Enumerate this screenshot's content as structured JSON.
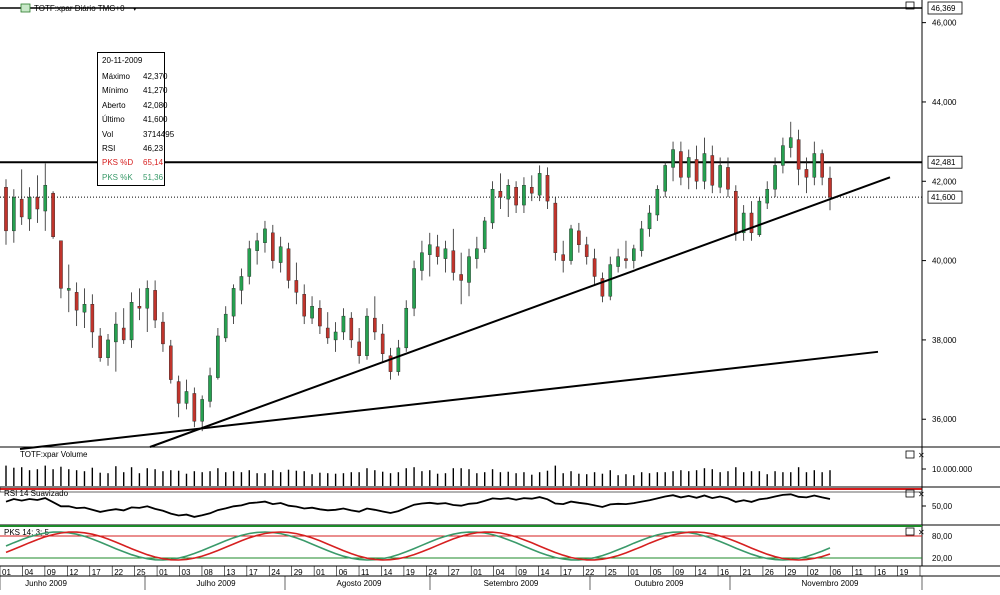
{
  "main_panel": {
    "title": "TOTF:xpar Diário TMG+0",
    "menu_arrow": "▾",
    "window_button": "maximize-icon"
  },
  "tooltip": {
    "date": "20-11-2009",
    "rows": [
      {
        "label": "Máximo",
        "value": "42,370"
      },
      {
        "label": "Mínimo",
        "value": "41,270"
      },
      {
        "label": "Aberto",
        "value": "42,080"
      },
      {
        "label": "Último",
        "value": "41,600"
      },
      {
        "label": "Vol",
        "value": "3714495"
      },
      {
        "label": "RSI",
        "value": "46,23"
      },
      {
        "label": "PKS %D",
        "value": "65,14"
      },
      {
        "label": "PKS %K",
        "value": "51,36"
      }
    ]
  },
  "volume_panel": {
    "title": "TOTF:xpar Volume",
    "label": "10.000.000"
  },
  "rsi_panel": {
    "title": "RSI 14 Suavizado",
    "label": "50,00"
  },
  "pks_panel": {
    "title": "PKS 14; 3; 5",
    "labels": [
      "80,00",
      "20,00"
    ]
  },
  "colors": {
    "up": "#26a050",
    "down": "#c0342c",
    "pks_d": "#d62020",
    "pks_k": "#3a9a6a",
    "ref_red": "#d61c1c",
    "ref_green": "#1d8a2a"
  },
  "chart_data": {
    "type": "candlestick",
    "ylim": [
      35300,
      46369
    ],
    "y_ticks": [
      "36,000",
      "38,000",
      "40,000",
      "42,000",
      "44,000",
      "46,000"
    ],
    "y_top_label": "46,369",
    "price_labels": [
      "42,481",
      "41,600"
    ],
    "horizontal_line": 42481,
    "last_price": 41600,
    "x_days": [
      "01",
      "04",
      "09",
      "12",
      "17",
      "22",
      "25",
      "01",
      "03",
      "08",
      "13",
      "17",
      "24",
      "29",
      "01",
      "06",
      "11",
      "14",
      "19",
      "24",
      "27",
      "01",
      "04",
      "09",
      "14",
      "17",
      "22",
      "25",
      "01",
      "05",
      "09",
      "14",
      "16",
      "21",
      "26",
      "29",
      "02",
      "06",
      "11",
      "16",
      "19"
    ],
    "x_months": [
      "Junho 2009",
      "Julho 2009",
      "Agosto 2009",
      "Setembro 2009",
      "Outubro 2009",
      "Novembro 2009"
    ],
    "candles": [
      {
        "o": 41850,
        "h": 42050,
        "l": 40400,
        "c": 40750
      },
      {
        "o": 40750,
        "h": 41800,
        "l": 40450,
        "c": 41600
      },
      {
        "o": 41550,
        "h": 42300,
        "l": 40900,
        "c": 41100
      },
      {
        "o": 41050,
        "h": 41850,
        "l": 40750,
        "c": 41600
      },
      {
        "o": 41600,
        "h": 42150,
        "l": 40950,
        "c": 41300
      },
      {
        "o": 41250,
        "h": 42450,
        "l": 40750,
        "c": 41900
      },
      {
        "o": 41700,
        "h": 41750,
        "l": 40550,
        "c": 40600
      },
      {
        "o": 40500,
        "h": 40500,
        "l": 39050,
        "c": 39300
      },
      {
        "o": 39250,
        "h": 39900,
        "l": 38700,
        "c": 39300
      },
      {
        "o": 39200,
        "h": 39450,
        "l": 38350,
        "c": 38750
      },
      {
        "o": 38700,
        "h": 39300,
        "l": 38300,
        "c": 38900
      },
      {
        "o": 38900,
        "h": 39150,
        "l": 37800,
        "c": 38200
      },
      {
        "o": 38100,
        "h": 38300,
        "l": 37450,
        "c": 37550
      },
      {
        "o": 37550,
        "h": 38150,
        "l": 37350,
        "c": 38000
      },
      {
        "o": 37950,
        "h": 38700,
        "l": 37200,
        "c": 38400
      },
      {
        "o": 38300,
        "h": 38800,
        "l": 37900,
        "c": 38000
      },
      {
        "o": 38000,
        "h": 39200,
        "l": 37800,
        "c": 38950
      },
      {
        "o": 38850,
        "h": 39300,
        "l": 38500,
        "c": 38800
      },
      {
        "o": 38800,
        "h": 39500,
        "l": 38200,
        "c": 39300
      },
      {
        "o": 39250,
        "h": 39500,
        "l": 38300,
        "c": 38500
      },
      {
        "o": 38450,
        "h": 38700,
        "l": 37700,
        "c": 37900
      },
      {
        "o": 37850,
        "h": 38000,
        "l": 36900,
        "c": 37000
      },
      {
        "o": 36950,
        "h": 37100,
        "l": 36050,
        "c": 36400
      },
      {
        "o": 36400,
        "h": 37000,
        "l": 36250,
        "c": 36700
      },
      {
        "o": 36650,
        "h": 36800,
        "l": 35800,
        "c": 35950
      },
      {
        "o": 35950,
        "h": 36600,
        "l": 35700,
        "c": 36500
      },
      {
        "o": 36450,
        "h": 37300,
        "l": 36300,
        "c": 37100
      },
      {
        "o": 37050,
        "h": 38300,
        "l": 37000,
        "c": 38100
      },
      {
        "o": 38050,
        "h": 38850,
        "l": 37950,
        "c": 38650
      },
      {
        "o": 38600,
        "h": 39400,
        "l": 38400,
        "c": 39300
      },
      {
        "o": 39250,
        "h": 39800,
        "l": 38900,
        "c": 39600
      },
      {
        "o": 39600,
        "h": 40500,
        "l": 39400,
        "c": 40300
      },
      {
        "o": 40250,
        "h": 40700,
        "l": 39900,
        "c": 40500
      },
      {
        "o": 40450,
        "h": 41000,
        "l": 40200,
        "c": 40800
      },
      {
        "o": 40700,
        "h": 40900,
        "l": 39800,
        "c": 40000
      },
      {
        "o": 39950,
        "h": 40600,
        "l": 39700,
        "c": 40350
      },
      {
        "o": 40300,
        "h": 40450,
        "l": 39300,
        "c": 39500
      },
      {
        "o": 39500,
        "h": 39950,
        "l": 38900,
        "c": 39200
      },
      {
        "o": 39150,
        "h": 39400,
        "l": 38400,
        "c": 38600
      },
      {
        "o": 38550,
        "h": 39100,
        "l": 38400,
        "c": 38850
      },
      {
        "o": 38800,
        "h": 39000,
        "l": 38150,
        "c": 38350
      },
      {
        "o": 38300,
        "h": 38700,
        "l": 37900,
        "c": 38050
      },
      {
        "o": 38000,
        "h": 38450,
        "l": 37700,
        "c": 38200
      },
      {
        "o": 38200,
        "h": 38800,
        "l": 38000,
        "c": 38600
      },
      {
        "o": 38550,
        "h": 38700,
        "l": 37800,
        "c": 38000
      },
      {
        "o": 37950,
        "h": 38300,
        "l": 37400,
        "c": 37600
      },
      {
        "o": 37600,
        "h": 38800,
        "l": 37500,
        "c": 38600
      },
      {
        "o": 38550,
        "h": 39100,
        "l": 38000,
        "c": 38200
      },
      {
        "o": 38150,
        "h": 38400,
        "l": 37450,
        "c": 37650
      },
      {
        "o": 37600,
        "h": 37800,
        "l": 37000,
        "c": 37200
      },
      {
        "o": 37200,
        "h": 38000,
        "l": 37100,
        "c": 37800
      },
      {
        "o": 37800,
        "h": 39000,
        "l": 37700,
        "c": 38800
      },
      {
        "o": 38800,
        "h": 40000,
        "l": 38600,
        "c": 39800
      },
      {
        "o": 39750,
        "h": 40500,
        "l": 39500,
        "c": 40200
      },
      {
        "o": 40150,
        "h": 40700,
        "l": 39600,
        "c": 40400
      },
      {
        "o": 40350,
        "h": 40650,
        "l": 39900,
        "c": 40100
      },
      {
        "o": 40050,
        "h": 40500,
        "l": 39700,
        "c": 40300
      },
      {
        "o": 40250,
        "h": 40800,
        "l": 39500,
        "c": 39700
      },
      {
        "o": 39650,
        "h": 40200,
        "l": 38900,
        "c": 39500
      },
      {
        "o": 39450,
        "h": 40300,
        "l": 39100,
        "c": 40100
      },
      {
        "o": 40050,
        "h": 40600,
        "l": 39800,
        "c": 40300
      },
      {
        "o": 40300,
        "h": 41100,
        "l": 40200,
        "c": 41000
      },
      {
        "o": 40950,
        "h": 42000,
        "l": 40800,
        "c": 41800
      },
      {
        "o": 41750,
        "h": 42200,
        "l": 41300,
        "c": 41600
      },
      {
        "o": 41550,
        "h": 42050,
        "l": 41100,
        "c": 41900
      },
      {
        "o": 41850,
        "h": 42000,
        "l": 41200,
        "c": 41400
      },
      {
        "o": 41400,
        "h": 42100,
        "l": 41200,
        "c": 41900
      },
      {
        "o": 41850,
        "h": 42150,
        "l": 41500,
        "c": 41700
      },
      {
        "o": 41650,
        "h": 42400,
        "l": 41500,
        "c": 42200
      },
      {
        "o": 42150,
        "h": 42350,
        "l": 41300,
        "c": 41500
      },
      {
        "o": 41450,
        "h": 41600,
        "l": 40000,
        "c": 40200
      },
      {
        "o": 40150,
        "h": 40500,
        "l": 39700,
        "c": 40000
      },
      {
        "o": 40000,
        "h": 40900,
        "l": 39900,
        "c": 40800
      },
      {
        "o": 40750,
        "h": 40950,
        "l": 40200,
        "c": 40400
      },
      {
        "o": 40400,
        "h": 40600,
        "l": 39900,
        "c": 40100
      },
      {
        "o": 40050,
        "h": 40300,
        "l": 39400,
        "c": 39600
      },
      {
        "o": 39550,
        "h": 39700,
        "l": 38950,
        "c": 39100
      },
      {
        "o": 39100,
        "h": 40100,
        "l": 39000,
        "c": 39900
      },
      {
        "o": 39850,
        "h": 40300,
        "l": 39700,
        "c": 40100
      },
      {
        "o": 40050,
        "h": 40500,
        "l": 39800,
        "c": 40000
      },
      {
        "o": 40000,
        "h": 40400,
        "l": 39800,
        "c": 40300
      },
      {
        "o": 40250,
        "h": 41000,
        "l": 40100,
        "c": 40800
      },
      {
        "o": 40800,
        "h": 41400,
        "l": 40600,
        "c": 41200
      },
      {
        "o": 41150,
        "h": 41900,
        "l": 41000,
        "c": 41800
      },
      {
        "o": 41750,
        "h": 42500,
        "l": 41600,
        "c": 42400
      },
      {
        "o": 42350,
        "h": 43000,
        "l": 42000,
        "c": 42800
      },
      {
        "o": 42750,
        "h": 43000,
        "l": 41900,
        "c": 42100
      },
      {
        "o": 42100,
        "h": 42800,
        "l": 41800,
        "c": 42600
      },
      {
        "o": 42550,
        "h": 42900,
        "l": 41800,
        "c": 42000
      },
      {
        "o": 42000,
        "h": 43100,
        "l": 41800,
        "c": 42700
      },
      {
        "o": 42650,
        "h": 42900,
        "l": 41700,
        "c": 41900
      },
      {
        "o": 41850,
        "h": 42600,
        "l": 41700,
        "c": 42400
      },
      {
        "o": 42350,
        "h": 42600,
        "l": 41600,
        "c": 41800
      },
      {
        "o": 41750,
        "h": 41900,
        "l": 40500,
        "c": 40700
      },
      {
        "o": 40700,
        "h": 41400,
        "l": 40500,
        "c": 41200
      },
      {
        "o": 41200,
        "h": 41500,
        "l": 40500,
        "c": 40700
      },
      {
        "o": 40650,
        "h": 41600,
        "l": 40600,
        "c": 41500
      },
      {
        "o": 41450,
        "h": 42000,
        "l": 41300,
        "c": 41800
      },
      {
        "o": 41800,
        "h": 42600,
        "l": 41600,
        "c": 42400
      },
      {
        "o": 42400,
        "h": 43100,
        "l": 42200,
        "c": 42900
      },
      {
        "o": 42850,
        "h": 43500,
        "l": 42600,
        "c": 43100
      },
      {
        "o": 43050,
        "h": 43300,
        "l": 41900,
        "c": 42300
      },
      {
        "o": 42300,
        "h": 42600,
        "l": 41700,
        "c": 42100
      },
      {
        "o": 42100,
        "h": 43000,
        "l": 41900,
        "c": 42700
      },
      {
        "o": 42700,
        "h": 42800,
        "l": 41900,
        "c": 42100
      },
      {
        "o": 42080,
        "h": 42370,
        "l": 41270,
        "c": 41600
      }
    ],
    "trendlines": [
      {
        "x1": 25,
        "y1": 35100,
        "x2": 235,
        "y2": 37800
      },
      {
        "x1": 38,
        "y1": 35400,
        "x2": 240,
        "y2": 41800
      },
      {
        "x1": 48,
        "y1": 35700,
        "x2": 240,
        "y2": 41800
      }
    ]
  }
}
